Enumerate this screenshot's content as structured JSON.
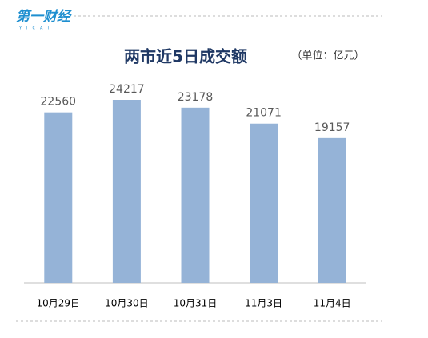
{
  "logo": {
    "text": "第一财经",
    "sub": "YICAI"
  },
  "chart_data": {
    "type": "bar",
    "title": "两市近5日成交额",
    "unit_note": "（单位：亿元）",
    "categories": [
      "10月29日",
      "10月30日",
      "10月31日",
      "11月3日",
      "11月4日"
    ],
    "values": [
      22560,
      24217,
      23178,
      21071,
      19157
    ],
    "color": "#95b3d7"
  }
}
